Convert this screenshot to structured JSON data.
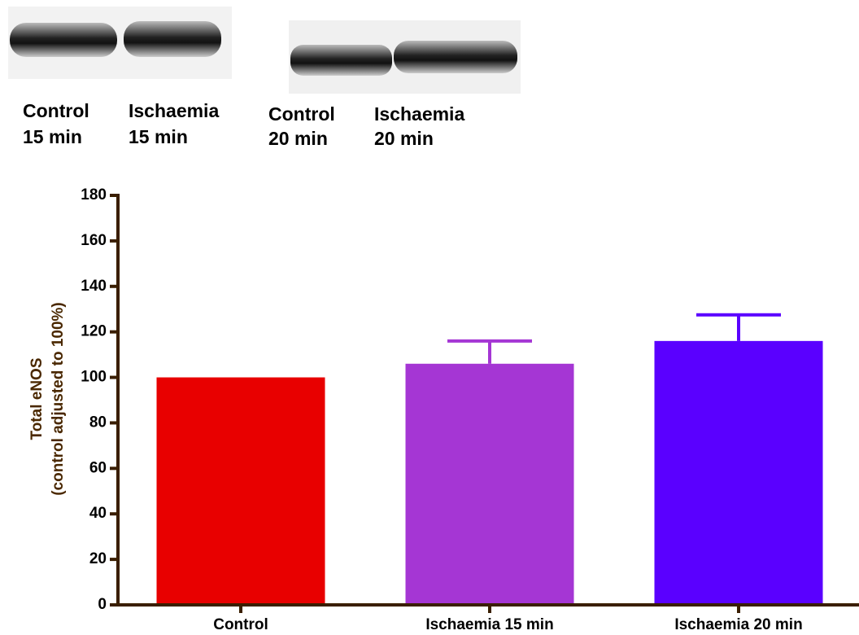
{
  "blot_labels": [
    [
      "Control",
      "15 min"
    ],
    [
      "Ischaemia",
      "15 min"
    ],
    [
      "Control",
      "20 min"
    ],
    [
      "Ischaemia",
      "20 min"
    ]
  ],
  "chart_data": {
    "type": "bar",
    "y_label": [
      "Total eNOS",
      "(control adjusted to 100%)"
    ],
    "categories": [
      "Control",
      "Ischaemia 15 min",
      "Ischaemia 20 min"
    ],
    "values": [
      100,
      106,
      116
    ],
    "errors": [
      null,
      10,
      11.5
    ],
    "colors": [
      "#e80000",
      "#a536d4",
      "#5a00ff"
    ],
    "ylim": [
      0,
      180
    ],
    "yticks": [
      0,
      20,
      40,
      60,
      80,
      100,
      120,
      140,
      160,
      180
    ]
  }
}
